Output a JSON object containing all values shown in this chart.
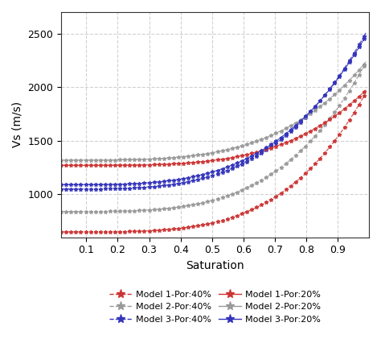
{
  "title": "",
  "xlabel": "Saturation",
  "ylabel": "Vs (m/s)",
  "xlim": [
    0.02,
    1.0
  ],
  "ylim": [
    600,
    2700
  ],
  "x_ticks": [
    0.1,
    0.2,
    0.3,
    0.4,
    0.5,
    0.6,
    0.7,
    0.8,
    0.9
  ],
  "y_ticks": [
    1000,
    1500,
    2000,
    2500
  ],
  "background_color": "#ffffff",
  "legend_ncol": 2,
  "figsize": [
    4.74,
    4.21
  ],
  "dpi": 100,
  "model_params": {
    "1_40": {
      "v0": 650,
      "v1": 2000,
      "n": 4.0
    },
    "2_40": {
      "v0": 840,
      "v1": 2280,
      "n": 3.8
    },
    "3_40": {
      "v0": 1050,
      "v1": 2560,
      "n": 3.6
    },
    "1_20": {
      "v0": 1270,
      "v1": 2000,
      "n": 4.0
    },
    "2_20": {
      "v0": 1320,
      "v1": 2270,
      "n": 3.8
    },
    "3_20": {
      "v0": 1090,
      "v1": 2530,
      "n": 3.6
    }
  },
  "series": [
    {
      "label": "Model 1-Por:40%",
      "color": "#cc3333",
      "linestyle": "--",
      "model": 1,
      "por": 40
    },
    {
      "label": "Model 2-Por:40%",
      "color": "#999999",
      "linestyle": "--",
      "model": 2,
      "por": 40
    },
    {
      "label": "Model 3-Por:40%",
      "color": "#3333bb",
      "linestyle": "--",
      "model": 3,
      "por": 40
    },
    {
      "label": "Model 1-Por:20%",
      "color": "#cc3333",
      "linestyle": "-",
      "model": 1,
      "por": 20
    },
    {
      "label": "Model 2-Por:20%",
      "color": "#999999",
      "linestyle": "-",
      "model": 2,
      "por": 20
    },
    {
      "label": "Model 3-Por:20%",
      "color": "#3333bb",
      "linestyle": "-",
      "model": 3,
      "por": 20
    }
  ]
}
